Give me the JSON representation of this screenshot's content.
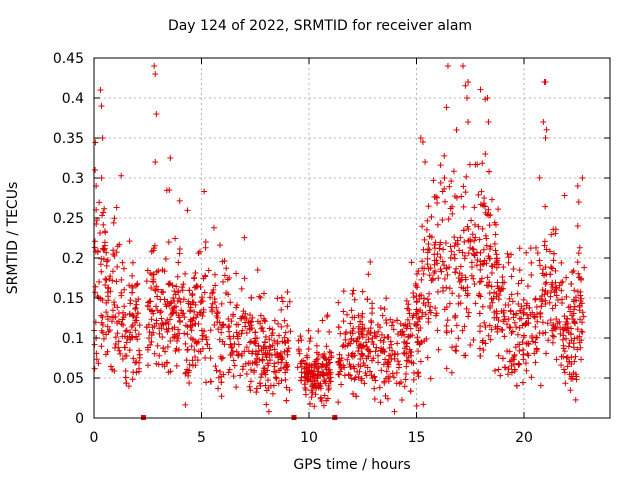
{
  "chart_data": {
    "type": "scatter",
    "title": "Day 124 of 2022, SRMTID for receiver alam",
    "xlabel": "GPS time / hours",
    "ylabel": "SRMTID / TECUs",
    "xlim": [
      0,
      24
    ],
    "ylim": [
      0,
      0.45
    ],
    "xticks": [
      0,
      5,
      10,
      15,
      20
    ],
    "yticks": [
      0,
      0.05,
      0.1,
      0.15,
      0.2,
      0.25,
      0.3,
      0.35,
      0.4,
      0.45
    ],
    "xtick_labels": [
      "0",
      "5",
      "10",
      "15",
      "20"
    ],
    "ytick_labels": [
      "0",
      "0.05",
      "0.1",
      "0.15",
      "0.2",
      "0.25",
      "0.3",
      "0.35",
      "0.4",
      "0.45"
    ],
    "grid": true,
    "marker": "+",
    "color": "#dd0000",
    "gap_markers_x": [
      2.3,
      9.3,
      11.2
    ],
    "baseline": [
      [
        0.0,
        0.18
      ],
      [
        0.5,
        0.16
      ],
      [
        1.0,
        0.14
      ],
      [
        1.5,
        0.12
      ],
      [
        2.0,
        0.11
      ],
      [
        2.5,
        0.12
      ],
      [
        3.0,
        0.13
      ],
      [
        3.5,
        0.12
      ],
      [
        4.0,
        0.12
      ],
      [
        4.5,
        0.11
      ],
      [
        5.0,
        0.13
      ],
      [
        5.5,
        0.13
      ],
      [
        6.0,
        0.12
      ],
      [
        6.5,
        0.11
      ],
      [
        7.0,
        0.1
      ],
      [
        7.5,
        0.09
      ],
      [
        8.0,
        0.085
      ],
      [
        8.5,
        0.08
      ],
      [
        9.0,
        0.08
      ],
      [
        9.5,
        0.075
      ],
      [
        10.0,
        0.055
      ],
      [
        10.5,
        0.05
      ],
      [
        11.0,
        0.065
      ],
      [
        11.5,
        0.08
      ],
      [
        12.0,
        0.085
      ],
      [
        12.5,
        0.09
      ],
      [
        13.0,
        0.085
      ],
      [
        13.5,
        0.08
      ],
      [
        14.0,
        0.08
      ],
      [
        14.5,
        0.085
      ],
      [
        15.0,
        0.13
      ],
      [
        15.5,
        0.17
      ],
      [
        16.0,
        0.19
      ],
      [
        16.5,
        0.2
      ],
      [
        17.0,
        0.2
      ],
      [
        17.5,
        0.19
      ],
      [
        18.0,
        0.19
      ],
      [
        18.5,
        0.17
      ],
      [
        19.0,
        0.13
      ],
      [
        19.5,
        0.11
      ],
      [
        20.0,
        0.11
      ],
      [
        20.5,
        0.12
      ],
      [
        21.0,
        0.16
      ],
      [
        21.5,
        0.14
      ],
      [
        22.0,
        0.1
      ],
      [
        22.5,
        0.13
      ],
      [
        22.8,
        0.13
      ]
    ],
    "spikes": [
      [
        0.05,
        0.31
      ],
      [
        0.1,
        0.29
      ],
      [
        0.3,
        0.41
      ],
      [
        0.35,
        0.39
      ],
      [
        0.4,
        0.35
      ],
      [
        2.8,
        0.44
      ],
      [
        2.85,
        0.43
      ],
      [
        2.9,
        0.38
      ],
      [
        2.85,
        0.32
      ],
      [
        3.55,
        0.325
      ],
      [
        3.5,
        0.285
      ],
      [
        5.2,
        0.22
      ],
      [
        15.2,
        0.35
      ],
      [
        15.3,
        0.345
      ],
      [
        15.4,
        0.32
      ],
      [
        16.3,
        0.3
      ],
      [
        17.4,
        0.42
      ],
      [
        17.35,
        0.4
      ],
      [
        17.4,
        0.37
      ],
      [
        18.3,
        0.4
      ],
      [
        18.35,
        0.37
      ],
      [
        18.2,
        0.33
      ],
      [
        20.95,
        0.42
      ],
      [
        21.0,
        0.42
      ],
      [
        21.0,
        0.35
      ],
      [
        20.9,
        0.37
      ],
      [
        22.5,
        0.29
      ],
      [
        22.55,
        0.27
      ],
      [
        22.5,
        0.24
      ]
    ],
    "samples_per_hour": 90,
    "random_seed": 124
  }
}
